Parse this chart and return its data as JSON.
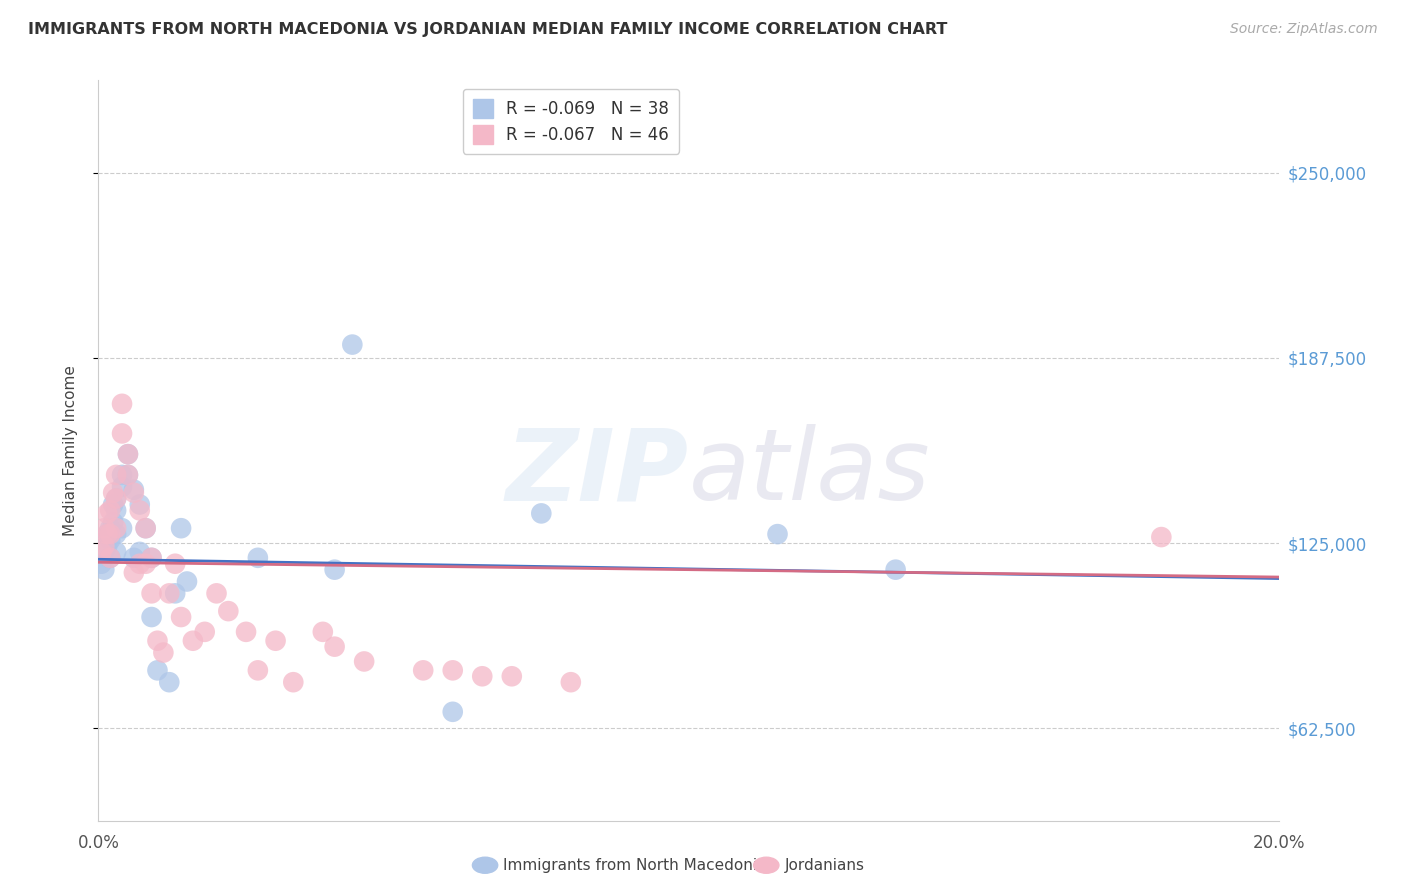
{
  "title": "IMMIGRANTS FROM NORTH MACEDONIA VS JORDANIAN MEDIAN FAMILY INCOME CORRELATION CHART",
  "source": "Source: ZipAtlas.com",
  "ylabel": "Median Family Income",
  "xlim": [
    0.0,
    0.2
  ],
  "ylim": [
    31250,
    281250
  ],
  "yticks": [
    62500,
    125000,
    187500,
    250000
  ],
  "ytick_labels": [
    "$62,500",
    "$125,000",
    "$187,500",
    "$250,000"
  ],
  "xticks": [
    0.0,
    0.05,
    0.1,
    0.15,
    0.2
  ],
  "xtick_labels": [
    "0.0%",
    "",
    "",
    "",
    "20.0%"
  ],
  "legend_entries": [
    {
      "label": "R = -0.069   N = 38",
      "color": "#aec6e8"
    },
    {
      "label": "R = -0.067   N = 46",
      "color": "#f4b8c8"
    }
  ],
  "blue_scatter_color": "#aec6e8",
  "pink_scatter_color": "#f4b8c8",
  "blue_line_color": "#4472c4",
  "pink_line_color": "#d46b84",
  "background_color": "#ffffff",
  "grid_color": "#cccccc",
  "right_label_color": "#5b9bd5",
  "blue_x": [
    0.0005,
    0.001,
    0.001,
    0.0015,
    0.0015,
    0.002,
    0.002,
    0.002,
    0.0025,
    0.0025,
    0.003,
    0.003,
    0.003,
    0.003,
    0.004,
    0.004,
    0.004,
    0.005,
    0.005,
    0.006,
    0.006,
    0.007,
    0.007,
    0.008,
    0.009,
    0.009,
    0.01,
    0.012,
    0.013,
    0.014,
    0.015,
    0.027,
    0.04,
    0.043,
    0.06,
    0.075,
    0.115,
    0.135
  ],
  "blue_y": [
    118000,
    122000,
    116000,
    128000,
    124000,
    130000,
    126000,
    120000,
    138000,
    132000,
    140000,
    136000,
    128000,
    122000,
    148000,
    144000,
    130000,
    155000,
    148000,
    143000,
    120000,
    138000,
    122000,
    130000,
    120000,
    100000,
    82000,
    78000,
    108000,
    130000,
    112000,
    120000,
    116000,
    192000,
    68000,
    135000,
    128000,
    116000
  ],
  "pink_x": [
    0.0005,
    0.001,
    0.001,
    0.0015,
    0.0015,
    0.002,
    0.002,
    0.002,
    0.0025,
    0.003,
    0.003,
    0.003,
    0.004,
    0.004,
    0.005,
    0.005,
    0.006,
    0.006,
    0.007,
    0.007,
    0.008,
    0.008,
    0.009,
    0.009,
    0.01,
    0.011,
    0.012,
    0.013,
    0.014,
    0.016,
    0.018,
    0.02,
    0.022,
    0.025,
    0.027,
    0.03,
    0.033,
    0.038,
    0.04,
    0.045,
    0.055,
    0.06,
    0.065,
    0.07,
    0.08,
    0.18
  ],
  "pink_y": [
    122000,
    130000,
    124000,
    135000,
    128000,
    136000,
    128000,
    120000,
    142000,
    148000,
    140000,
    130000,
    172000,
    162000,
    155000,
    148000,
    142000,
    115000,
    136000,
    118000,
    130000,
    118000,
    120000,
    108000,
    92000,
    88000,
    108000,
    118000,
    100000,
    92000,
    95000,
    108000,
    102000,
    95000,
    82000,
    92000,
    78000,
    95000,
    90000,
    85000,
    82000,
    82000,
    80000,
    80000,
    78000,
    127000
  ],
  "blue_line_x": [
    0.0,
    0.2
  ],
  "blue_line_y": [
    119500,
    113000
  ],
  "pink_line_x": [
    0.0,
    0.2
  ],
  "pink_line_y": [
    118500,
    113500
  ]
}
